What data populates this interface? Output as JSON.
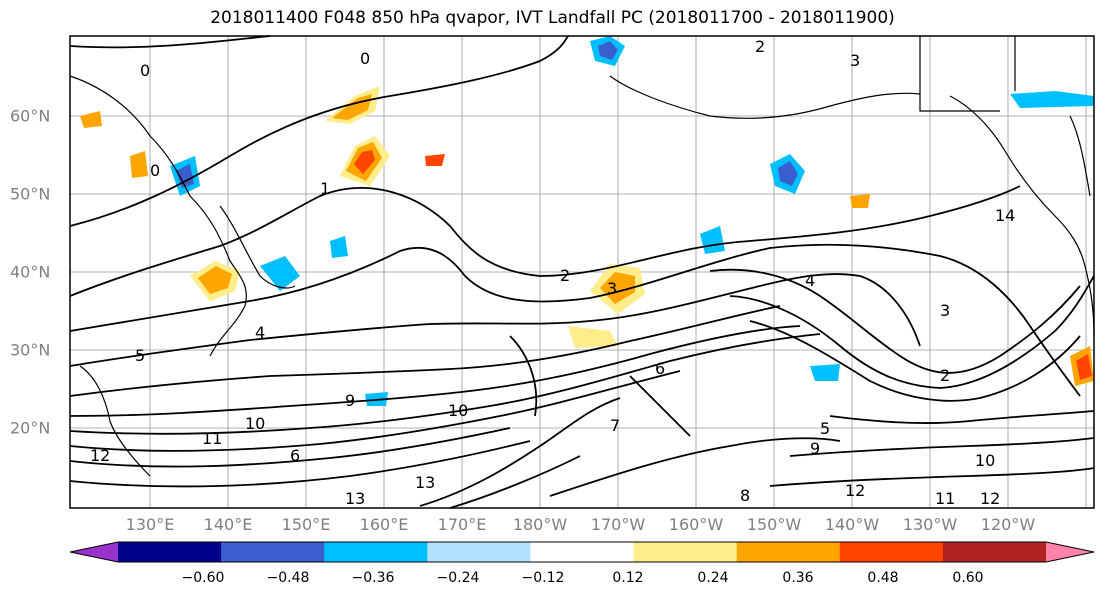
{
  "title": "2018011400 F048 850 hPa qvapor, IVT Landfall PC (2018011700 - 2018011900)",
  "lat_labels": [
    "60°N",
    "50°N",
    "40°N",
    "30°N",
    "20°N"
  ],
  "lon_labels": [
    "130°E",
    "140°E",
    "150°E",
    "160°E",
    "170°E",
    "180°W",
    "170°W",
    "160°W",
    "150°W",
    "140°W",
    "130°W",
    "120°W"
  ],
  "contour_labels": [
    "0",
    "0",
    "0",
    "1",
    "2",
    "2",
    "3",
    "4",
    "3",
    "4",
    "5",
    "6",
    "7",
    "9",
    "10",
    "10",
    "11",
    "12",
    "11",
    "12",
    "12",
    "13",
    "13",
    "14",
    "8",
    "9",
    "10",
    "3",
    "2",
    "5",
    "6"
  ],
  "colorbar": {
    "ticks": [
      "−0.60",
      "−0.48",
      "−0.36",
      "−0.24",
      "−0.12",
      "0.12",
      "0.24",
      "0.36",
      "0.48",
      "0.60"
    ],
    "colors": [
      "#9932cc",
      "#00008b",
      "#3a5fcd",
      "#00bfff",
      "#b0e2ff",
      "#ffffff",
      "#ffec8b",
      "#ffa500",
      "#ff4500",
      "#b22222",
      "#ff82ab"
    ]
  },
  "colors": {
    "coastline": "#000000",
    "grid": "#808080",
    "positive_low": "#ffec8b",
    "positive_mid": "#ffa500",
    "positive_high": "#ff4500",
    "negative_low": "#b0e2ff",
    "negative_mid": "#00bfff",
    "negative_high": "#3a5fcd"
  }
}
